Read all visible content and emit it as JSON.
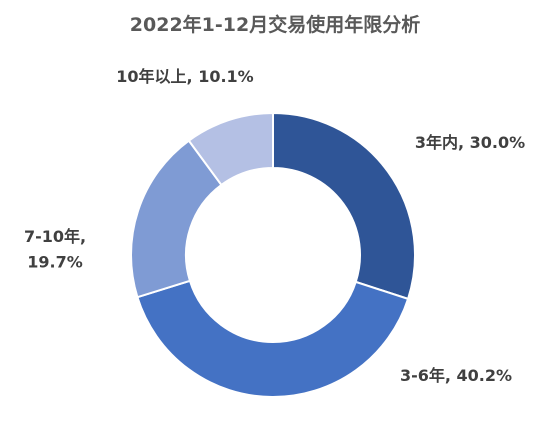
{
  "chart_data": {
    "type": "donut",
    "title": "2022年1-12月交易使用年限分析",
    "slices": [
      {
        "name": "3年内",
        "value": 30.0,
        "label_lines": [
          "3年内, 30.0%"
        ],
        "color": "#2f5597"
      },
      {
        "name": "3-6年",
        "value": 40.2,
        "label_lines": [
          "3-6年, 40.2%"
        ],
        "color": "#4472c4"
      },
      {
        "name": "7-10年",
        "value": 19.7,
        "label_lines": [
          "7-10年,",
          "19.7%"
        ],
        "color": "#7f9bd4"
      },
      {
        "name": "10年以上",
        "value": 10.1,
        "label_lines": [
          "10年以上, 10.1%"
        ],
        "color": "#b4c0e4"
      }
    ]
  }
}
